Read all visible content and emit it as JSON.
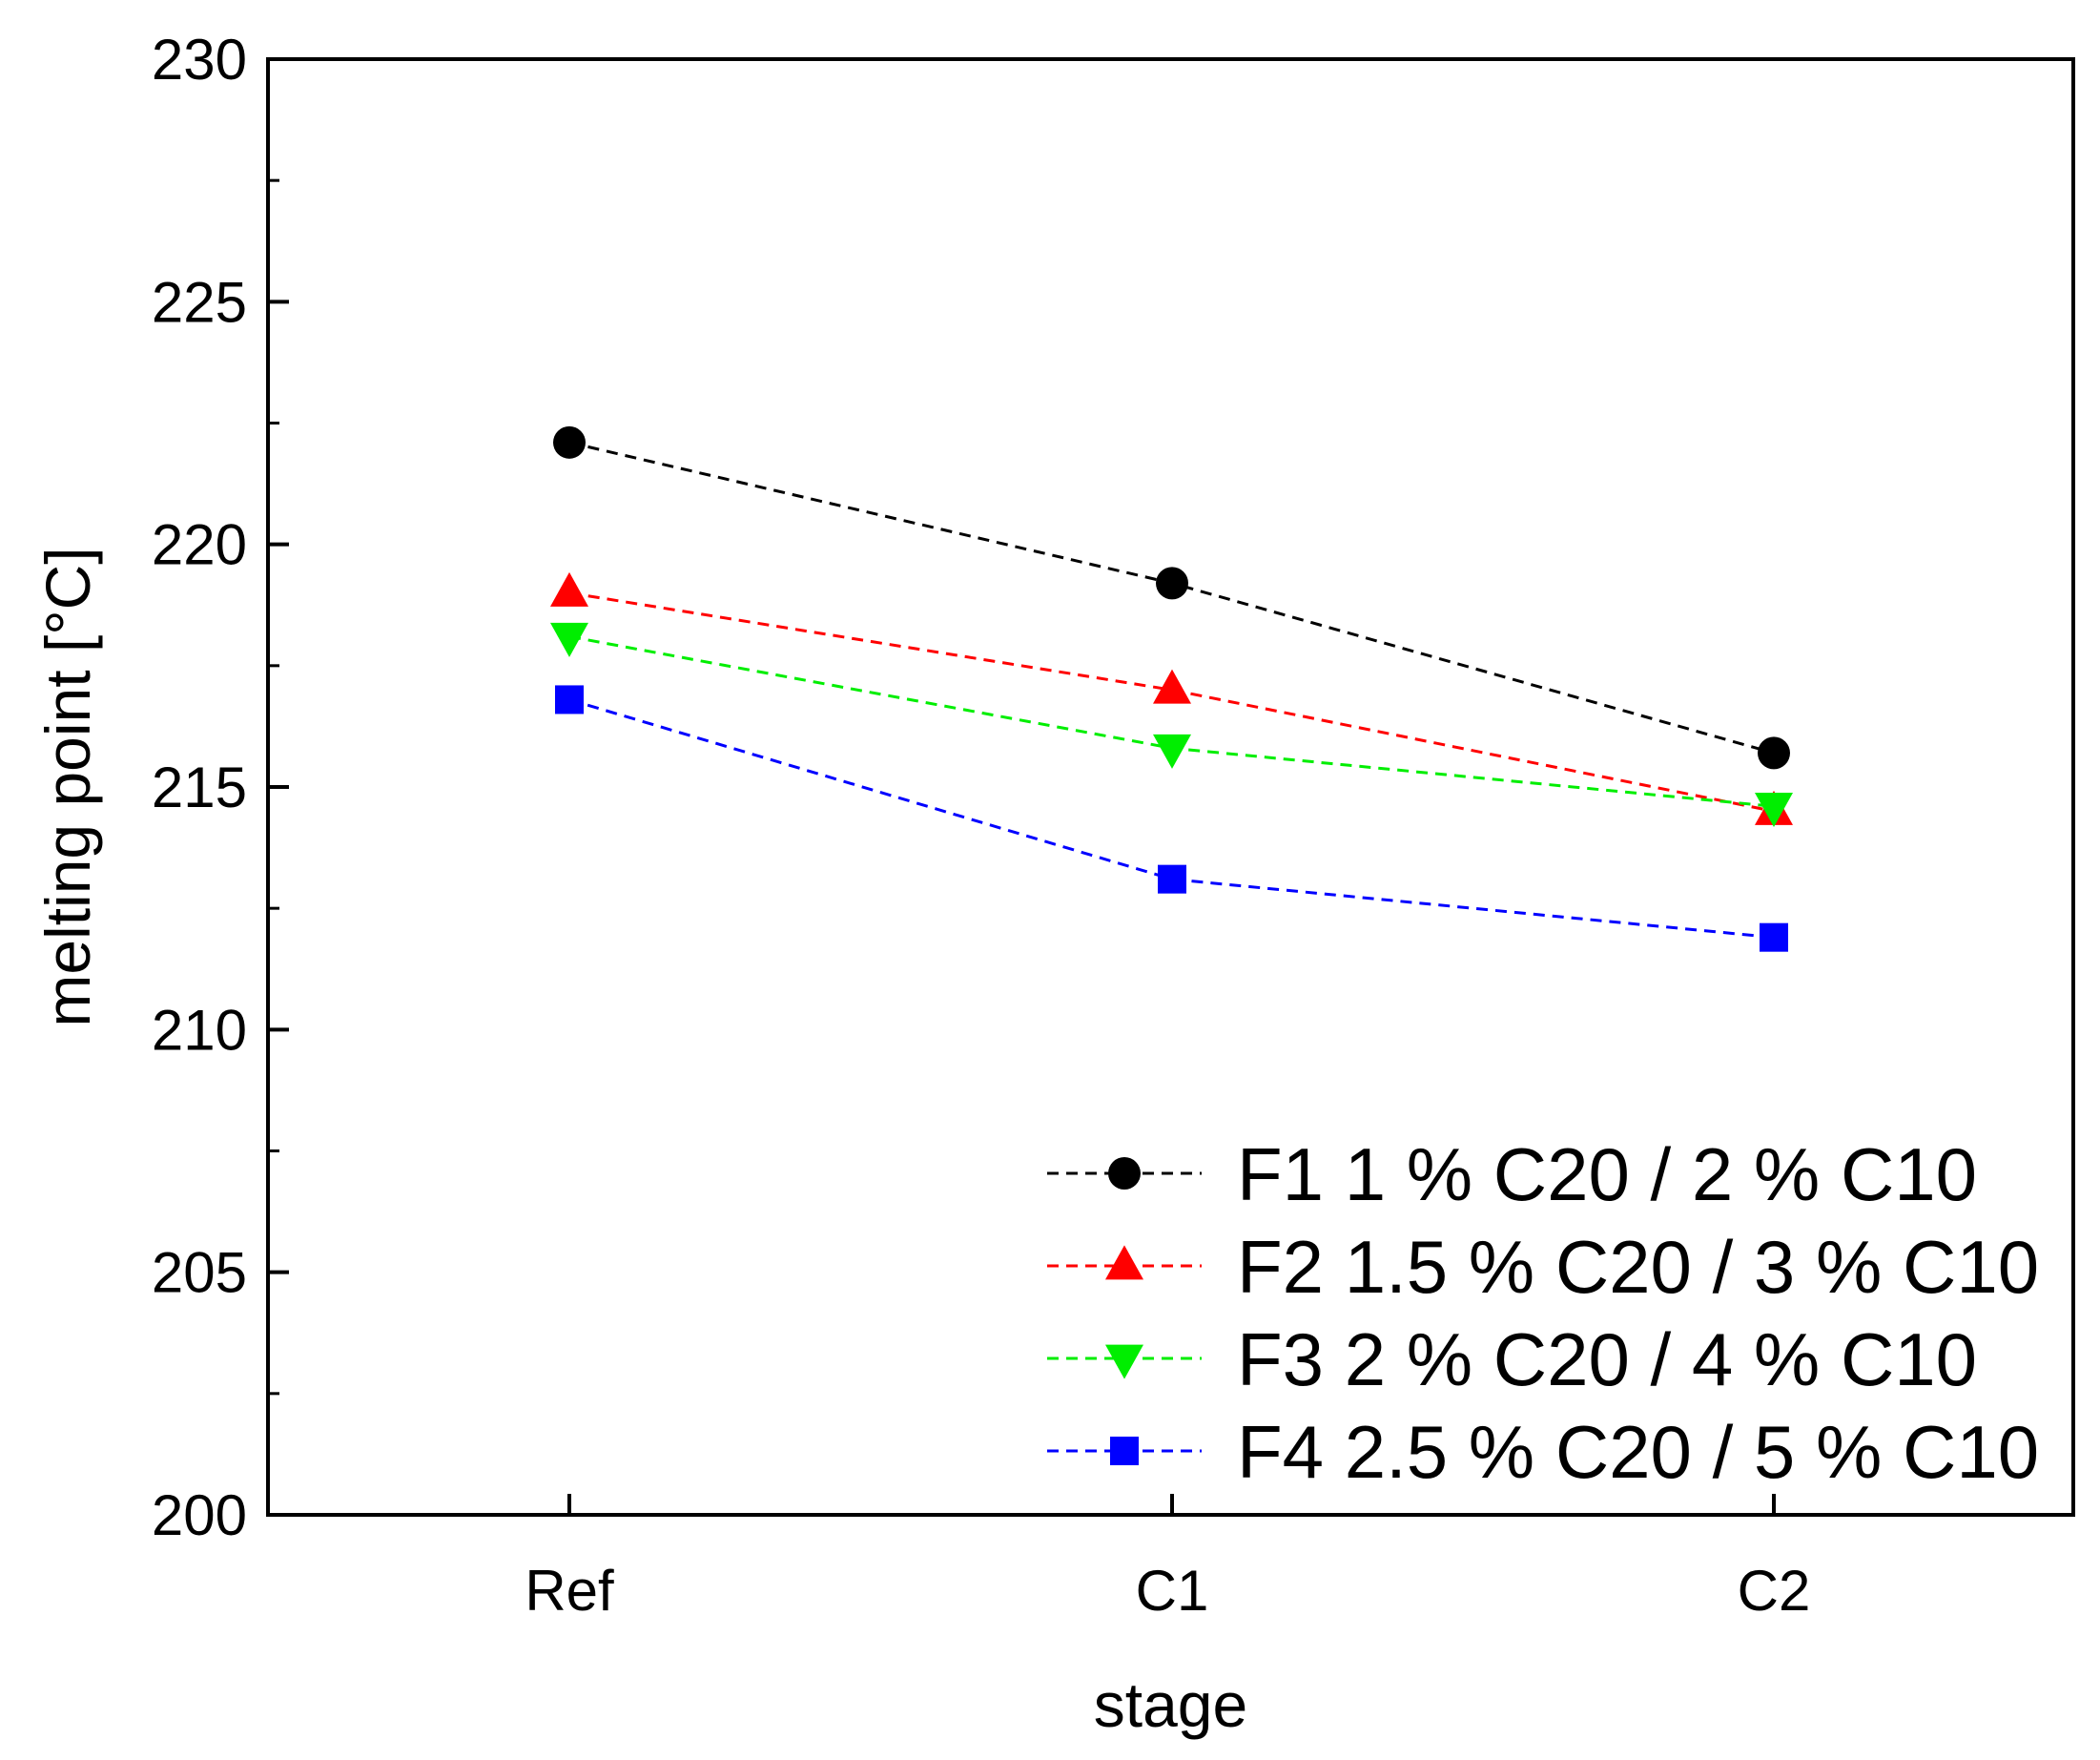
{
  "chart_data": {
    "type": "line",
    "title": "",
    "xlabel": "stage",
    "ylabel": "melting point [°C]",
    "categories": [
      "Ref",
      "C1",
      "C2"
    ],
    "ylim": [
      200,
      230
    ],
    "yticks": [
      200,
      205,
      210,
      215,
      220,
      225,
      230
    ],
    "ytick_labels": [
      "200",
      "205",
      "210",
      "215",
      "220",
      "225",
      "230"
    ],
    "line_style": "dashed",
    "grid": false,
    "legend_position": "bottom-right",
    "series": [
      {
        "name": "F1 1 % C20 / 2 % C10",
        "color": "#000000",
        "marker": "circle",
        "values": [
          222.1,
          219.2,
          215.7
        ]
      },
      {
        "name": "F2 1.5 % C20 / 3 % C10",
        "color": "#ff0000",
        "marker": "triangle-up",
        "values": [
          219.0,
          217.0,
          214.5
        ]
      },
      {
        "name": "F3 2 % C20 / 4 % C10",
        "color": "#00ee00",
        "marker": "triangle-down",
        "values": [
          218.1,
          215.8,
          214.6
        ]
      },
      {
        "name": "F4 2.5 % C20 / 5 % C10",
        "color": "#0000ff",
        "marker": "square",
        "values": [
          216.8,
          213.1,
          211.9
        ]
      }
    ]
  }
}
